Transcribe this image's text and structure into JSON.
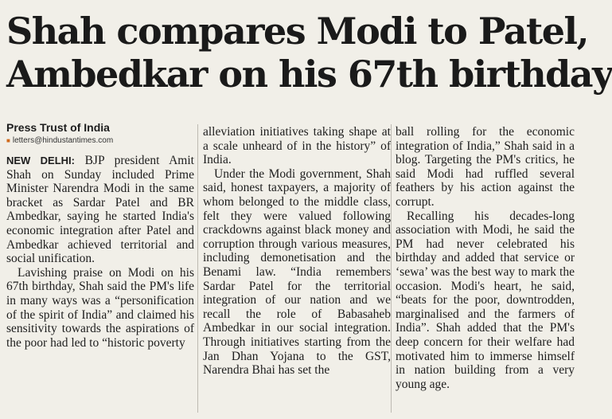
{
  "article": {
    "headline_line1": "Shah compares Modi to Patel,",
    "headline_line2": "Ambedkar on his 67th birthday",
    "byline": "Press Trust of India",
    "email": "letters@hindustantimes.com",
    "dateline": "NEW DELHI:",
    "col1_p1": " BJP president Amit Shah on Sunday included Prime Minister Narendra Modi in the same bracket as Sardar Patel and BR Ambedkar, saying he started India's economic integration after Patel and Ambedkar achieved territorial and social unification.",
    "col1_p2": "Lavishing praise on Modi on his 67th birthday, Shah said the PM's life in many ways was a “personification of the spirit of India” and claimed his sensitivity towards the aspirations of the poor had led to “historic poverty",
    "col2_p1": "alleviation initiatives taking shape at a scale unheard of in the history” of India.",
    "col2_p2": "Under the Modi government, Shah said, honest taxpayers, a majority of whom belonged to the middle class, felt they were valued following crackdowns against black money and corruption through various measures, including demonetisation and the Benami law. “India remembers Sardar Patel for the territorial integration of our nation and we recall the role of Babasaheb Ambedkar in our social integration. Through initiatives starting from the Jan Dhan Yojana to the GST, Narendra Bhai has set the",
    "col3_p1": "ball rolling for the economic integration of India,” Shah said in a blog. Targeting the PM's critics, he said Modi had ruffled several feathers by his action against the corrupt.",
    "col3_p2": "Recalling his decades-long association with Modi, he said the PM had never celebrated his birthday and added that service or ‘sewa’ was the best way to mark the occasion. Modi's heart, he said, “beats for the poor, downtrodden, marginalised and the farmers of India”. Shah added that the PM's deep concern for their welfare had motivated him to immerse himself in nation building from a very young age."
  }
}
